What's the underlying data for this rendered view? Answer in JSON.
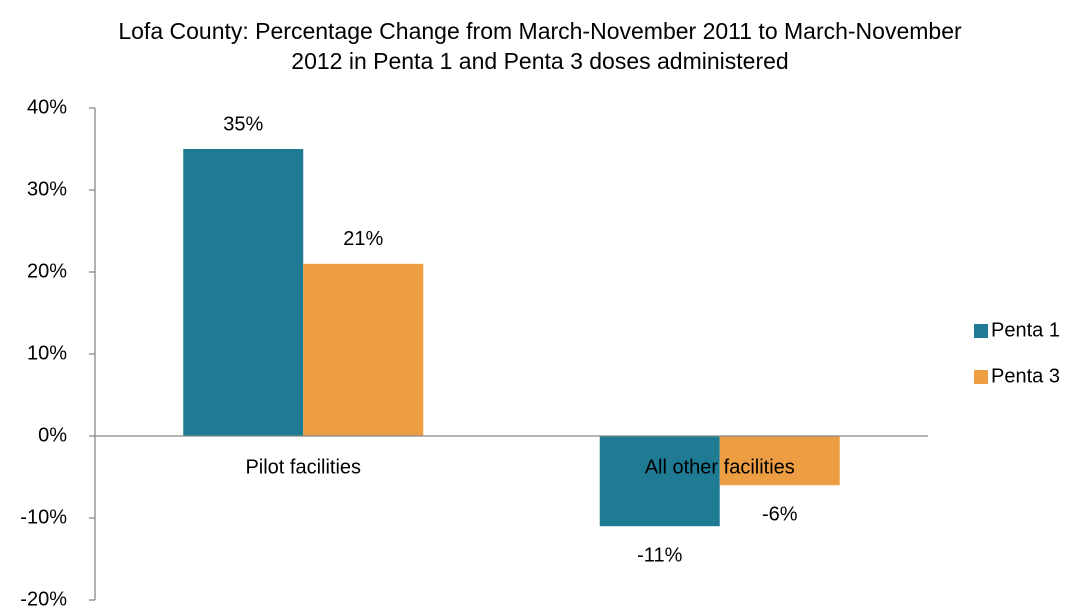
{
  "chart_data": {
    "type": "bar",
    "title": "Lofa County: Percentage Change from March-November 2011 to March-November 2012 in Penta 1 and Penta 3 doses administered",
    "categories": [
      "Pilot facilities",
      "All other facilities"
    ],
    "series": [
      {
        "name": "Penta 1",
        "color": "#1f7a94",
        "values": [
          35,
          -11
        ],
        "value_labels": [
          "35%",
          "-11%"
        ]
      },
      {
        "name": "Penta 3",
        "color": "#ed9e42",
        "values": [
          21,
          -6
        ],
        "value_labels": [
          "21%",
          "-6%"
        ]
      }
    ],
    "ylim": [
      -20,
      40
    ],
    "yticks": [
      {
        "value": -20,
        "label": "-20%"
      },
      {
        "value": -10,
        "label": "-10%"
      },
      {
        "value": 0,
        "label": "0%"
      },
      {
        "value": 10,
        "label": "10%"
      },
      {
        "value": 20,
        "label": "20%"
      },
      {
        "value": 30,
        "label": "30%"
      },
      {
        "value": 40,
        "label": "40%"
      }
    ],
    "grid": false,
    "legend": "right"
  }
}
